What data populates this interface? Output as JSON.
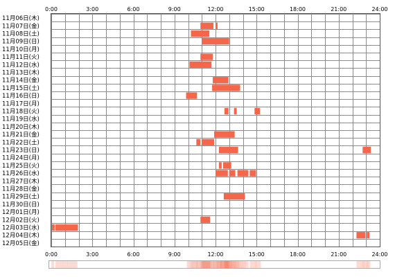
{
  "chart_data": {
    "type": "timeline",
    "x_unit": "hours",
    "x_range": [
      0,
      24
    ],
    "x_ticks": [
      "0:00",
      "3:00",
      "6:00",
      "9:00",
      "12:00",
      "15:00",
      "18:00",
      "21:00",
      "24:00"
    ],
    "grid": true,
    "bar_color": "#f4674b",
    "density_color": "#f4674b",
    "rows": [
      {
        "label": "11月06日(木)",
        "intervals": []
      },
      {
        "label": "11月07日(金)",
        "intervals": [
          [
            10.9,
            11.85
          ],
          [
            12.05,
            12.15
          ]
        ]
      },
      {
        "label": "11月08日(土)",
        "intervals": [
          [
            10.2,
            11.55
          ]
        ]
      },
      {
        "label": "11月09日(日)",
        "intervals": [
          [
            11.0,
            13.0
          ]
        ]
      },
      {
        "label": "11月10日(月)",
        "intervals": []
      },
      {
        "label": "11月11日(火)",
        "intervals": [
          [
            10.9,
            11.8
          ]
        ]
      },
      {
        "label": "11月12日(水)",
        "intervals": [
          [
            10.1,
            11.7
          ]
        ]
      },
      {
        "label": "11月13日(木)",
        "intervals": []
      },
      {
        "label": "11月14日(金)",
        "intervals": [
          [
            11.8,
            12.95
          ]
        ]
      },
      {
        "label": "11月15日(土)",
        "intervals": [
          [
            11.75,
            13.8
          ]
        ]
      },
      {
        "label": "11月16日(日)",
        "intervals": [
          [
            9.85,
            10.65
          ]
        ]
      },
      {
        "label": "11月17日(月)",
        "intervals": []
      },
      {
        "label": "11月18日(火)",
        "intervals": [
          [
            12.65,
            12.95
          ],
          [
            13.35,
            13.55
          ],
          [
            14.85,
            15.25
          ]
        ]
      },
      {
        "label": "11月19日(水)",
        "intervals": []
      },
      {
        "label": "11月20日(木)",
        "intervals": []
      },
      {
        "label": "11月21日(金)",
        "intervals": [
          [
            11.9,
            13.4
          ]
        ]
      },
      {
        "label": "11月22日(土)",
        "intervals": [
          [
            10.6,
            10.9
          ],
          [
            11.0,
            11.9
          ]
        ]
      },
      {
        "label": "11月23日(日)",
        "intervals": [
          [
            12.25,
            13.65
          ],
          [
            22.75,
            23.35
          ]
        ]
      },
      {
        "label": "11月24日(月)",
        "intervals": []
      },
      {
        "label": "11月25日(火)",
        "intervals": [
          [
            12.25,
            12.45
          ],
          [
            12.55,
            13.15
          ]
        ]
      },
      {
        "label": "11月26日(水)",
        "intervals": [
          [
            12.0,
            12.9
          ],
          [
            13.0,
            13.45
          ],
          [
            13.6,
            14.4
          ],
          [
            14.5,
            14.95
          ]
        ]
      },
      {
        "label": "11月27日(木)",
        "intervals": []
      },
      {
        "label": "11月28日(金)",
        "intervals": []
      },
      {
        "label": "11月29日(土)",
        "intervals": [
          [
            12.6,
            14.15
          ]
        ]
      },
      {
        "label": "11月30日(日)",
        "intervals": []
      },
      {
        "label": "12月01日(月)",
        "intervals": []
      },
      {
        "label": "12月02日(火)",
        "intervals": [
          [
            10.9,
            11.6
          ]
        ]
      },
      {
        "label": "12月03日(水)",
        "intervals": [
          [
            0.05,
            0.25
          ],
          [
            0.3,
            1.95
          ]
        ]
      },
      {
        "label": "12月04日(木)",
        "intervals": [
          [
            22.3,
            22.95
          ],
          [
            23.05,
            23.25
          ]
        ]
      },
      {
        "label": "12月05日(金)",
        "intervals": []
      }
    ]
  }
}
